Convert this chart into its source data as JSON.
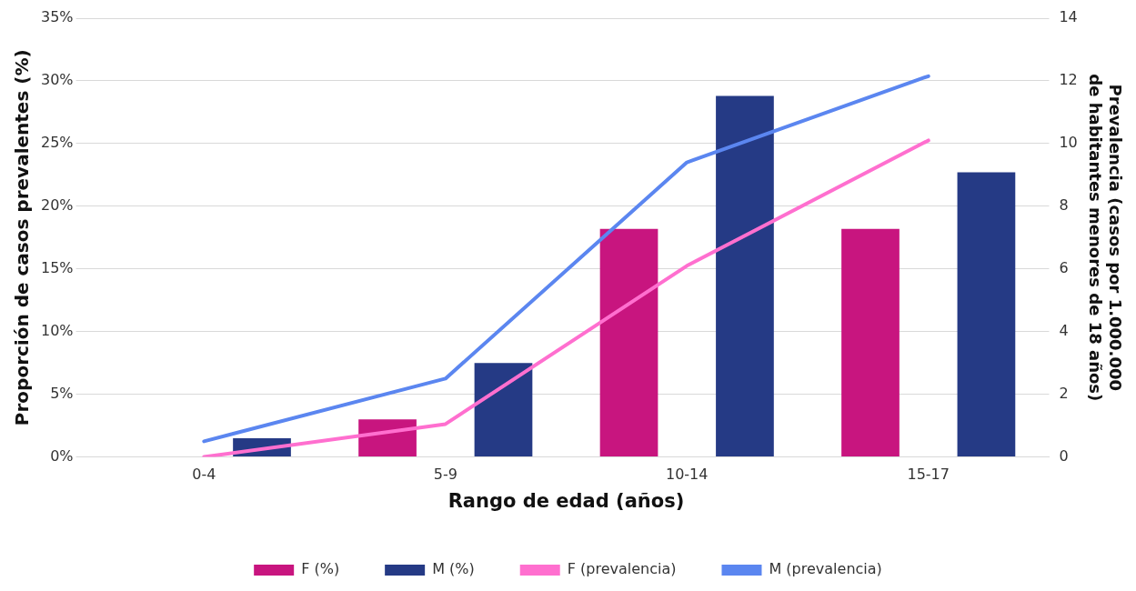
{
  "chart_data": {
    "type": "bar",
    "xlabel": "Rango de edad (años)",
    "ylabel": "Proporción de casos prevalentes (%)",
    "y2label": "Prevalencia (casos por 1.000.000 de habitantes menores de 18 años)",
    "categories": [
      "0-4",
      "5-9",
      "10-14",
      "15-17"
    ],
    "series": [
      {
        "name": "F (%)",
        "color": "#c8157f",
        "values": [
          0,
          3,
          18.2,
          18.2
        ]
      },
      {
        "name": "M (%)",
        "color": "#253a85",
        "values": [
          1.5,
          7.5,
          28.8,
          22.7
        ]
      },
      {
        "name": "F (prevalencia)",
        "type": "line",
        "axis": "y2",
        "color": "#ff6fcf",
        "values": [
          0,
          1.05,
          6.1,
          10.1
        ]
      },
      {
        "name": "M (prevalencia)",
        "type": "line",
        "axis": "y2",
        "color": "#5b86f0",
        "values": [
          0.5,
          2.5,
          9.4,
          12.15
        ]
      }
    ],
    "ylim": [
      0,
      35
    ],
    "yticks": [
      {
        "value": 0,
        "label": "0%"
      },
      {
        "value": 5,
        "label": "5%"
      },
      {
        "value": 10,
        "label": "10%"
      },
      {
        "value": 15,
        "label": "15%"
      },
      {
        "value": 20,
        "label": "20%"
      },
      {
        "value": 25,
        "label": "25%"
      },
      {
        "value": 30,
        "label": "30%"
      },
      {
        "value": 35,
        "label": "35%"
      }
    ],
    "y2lim": [
      0,
      14
    ],
    "y2ticks": [
      0,
      2,
      4,
      6,
      8,
      10,
      12,
      14
    ],
    "grid": "y",
    "legend": "bottom",
    "marker": "none",
    "line_style": "solid"
  }
}
